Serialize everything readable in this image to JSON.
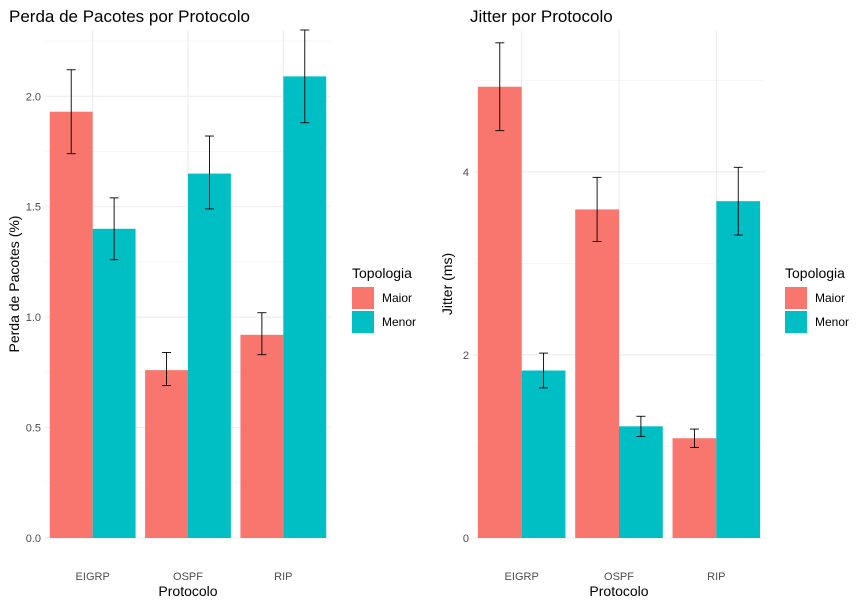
{
  "colors": {
    "Maior": "#F8766D",
    "Menor": "#00BFC4",
    "grid_major": "#EBEBEB",
    "grid_minor": "#F4F4F4",
    "errorbar": "#000000"
  },
  "chart_data": [
    {
      "type": "bar",
      "title": "Perda de Pacotes por Protocolo",
      "xlabel": "Protocolo",
      "ylabel": "Perda de Pacotes (%)",
      "categories": [
        "EIGRP",
        "OSPF",
        "RIP"
      ],
      "ylim": [
        0,
        2.3
      ],
      "yticks": [
        0.0,
        0.5,
        1.0,
        1.5,
        2.0
      ],
      "ytick_labels": [
        "0.0",
        "0.5",
        "1.0",
        "1.5",
        "2.0"
      ],
      "grid": true,
      "legend": {
        "title": "Topologia",
        "position": "right",
        "entries": [
          "Maior",
          "Menor"
        ]
      },
      "series": [
        {
          "name": "Maior",
          "values": [
            1.93,
            0.76,
            0.92
          ],
          "err_low": [
            1.74,
            0.69,
            0.83
          ],
          "err_high": [
            2.12,
            0.84,
            1.02
          ]
        },
        {
          "name": "Menor",
          "values": [
            1.4,
            1.65,
            2.09
          ],
          "err_low": [
            1.26,
            1.49,
            1.88
          ],
          "err_high": [
            1.54,
            1.82,
            2.3
          ]
        }
      ]
    },
    {
      "type": "bar",
      "title": "Jitter por Protocolo",
      "xlabel": "Protocolo",
      "ylabel": "Jitter (ms)",
      "categories": [
        "EIGRP",
        "OSPF",
        "RIP"
      ],
      "ylim": [
        0,
        5.55
      ],
      "yticks": [
        0,
        2,
        4
      ],
      "ytick_labels": [
        "0",
        "2",
        "4"
      ],
      "grid": true,
      "legend": {
        "title": "Topologia",
        "position": "right",
        "entries": [
          "Maior",
          "Menor"
        ]
      },
      "series": [
        {
          "name": "Maior",
          "values": [
            4.93,
            3.59,
            1.09
          ],
          "err_low": [
            4.45,
            3.24,
            0.99
          ],
          "err_high": [
            5.41,
            3.94,
            1.19
          ]
        },
        {
          "name": "Menor",
          "values": [
            1.83,
            1.22,
            3.68
          ],
          "err_low": [
            1.64,
            1.11,
            3.31
          ],
          "err_high": [
            2.02,
            1.33,
            4.05
          ]
        }
      ]
    }
  ]
}
